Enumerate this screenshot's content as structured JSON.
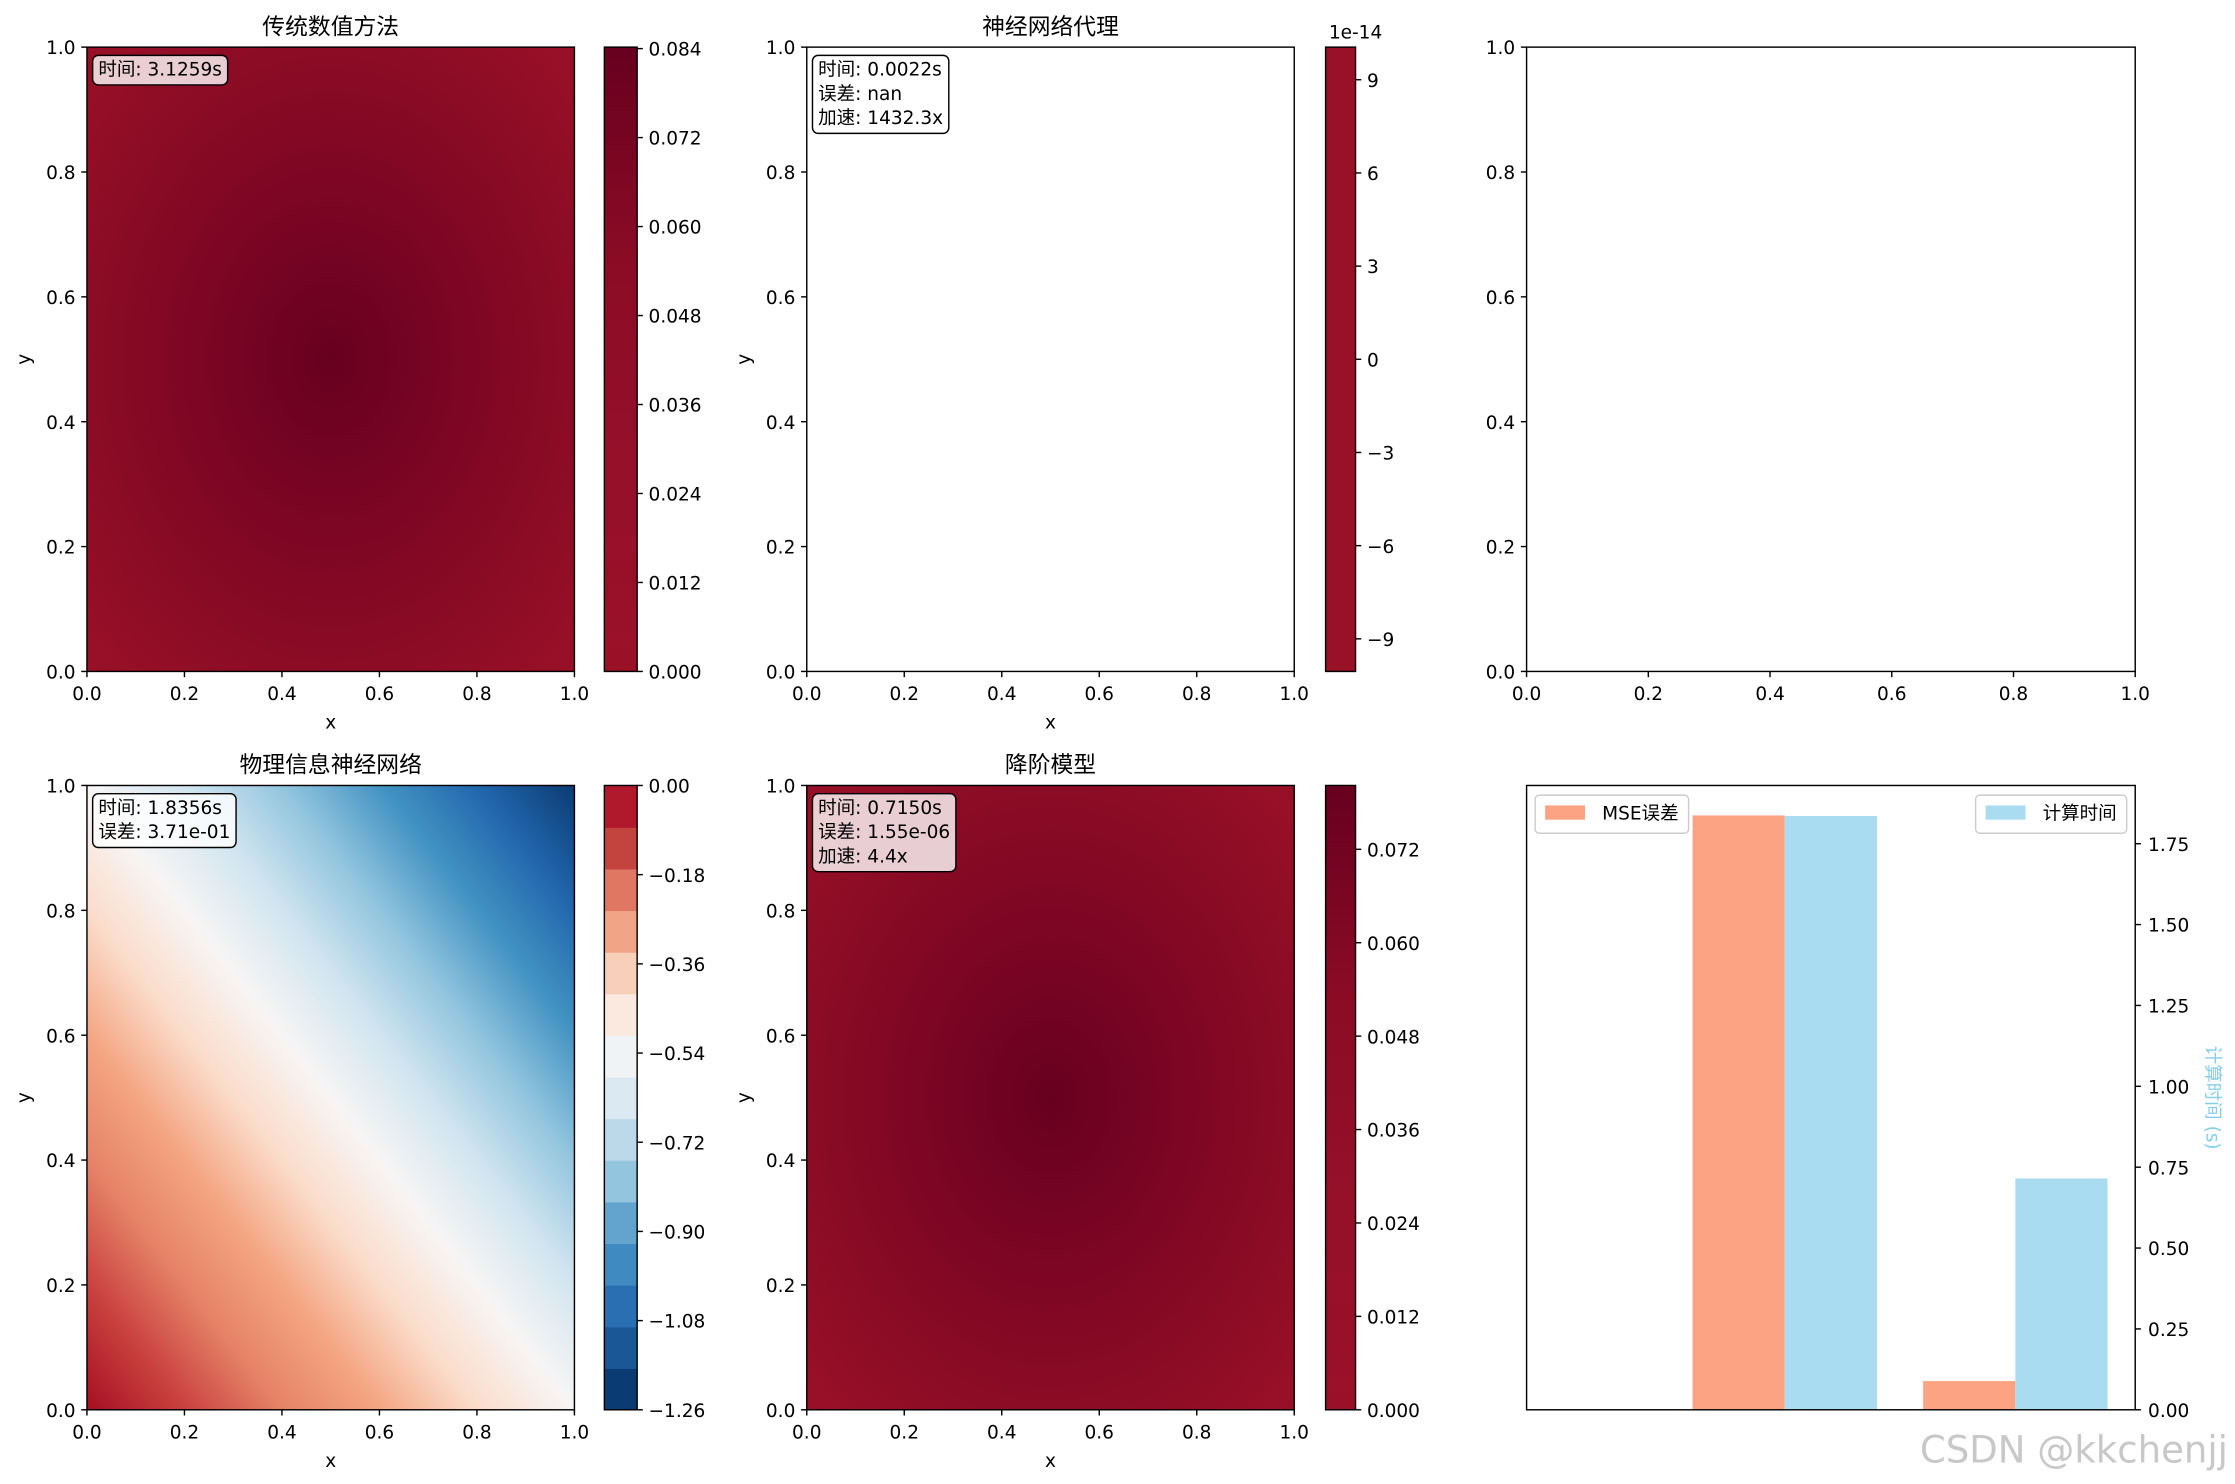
{
  "chart_data": [
    {
      "type": "contour",
      "title": "传统数值方法",
      "xlabel": "x",
      "ylabel": "y",
      "xlim": [
        0,
        1
      ],
      "ylim": [
        0,
        1
      ],
      "xticks": [
        {
          "value": 0,
          "label": "0.0"
        },
        {
          "value": 0.2,
          "label": "0.2"
        },
        {
          "value": 0.4,
          "label": "0.4"
        },
        {
          "value": 0.6,
          "label": "0.6"
        },
        {
          "value": 0.8,
          "label": "0.8"
        },
        {
          "value": 1,
          "label": "1.0"
        }
      ],
      "yticks": [
        {
          "value": 0,
          "label": "0.0"
        },
        {
          "value": 0.2,
          "label": "0.2"
        },
        {
          "value": 0.4,
          "label": "0.4"
        },
        {
          "value": 0.6,
          "label": "0.6"
        },
        {
          "value": 0.8,
          "label": "0.8"
        },
        {
          "value": 1,
          "label": "1.0"
        }
      ],
      "annotation": [
        "时间: 3.1259s"
      ],
      "field": {
        "shape": "radial",
        "colors": [
          "#67001f",
          "#7a0523",
          "#8b0b25",
          "#9a1127"
        ]
      },
      "colorbar": {
        "lim": [
          0,
          0.0842
        ],
        "ticks": [
          {
            "value": 0,
            "label": "0.000"
          },
          0.012,
          0.024,
          0.036,
          0.048,
          {
            "value": 0.06,
            "label": "0.060"
          },
          0.072,
          0.084
        ],
        "colors": [
          "#9a1127",
          "#96102a",
          "#8b0b25",
          "#67001f"
        ]
      }
    },
    {
      "type": "contour",
      "title": "神经网络代理",
      "xlabel": "x",
      "ylabel": "y",
      "xlim": [
        0,
        1
      ],
      "ylim": [
        0,
        1
      ],
      "xticks": [
        {
          "value": 0,
          "label": "0.0"
        },
        {
          "value": 0.2,
          "label": "0.2"
        },
        {
          "value": 0.4,
          "label": "0.4"
        },
        {
          "value": 0.6,
          "label": "0.6"
        },
        {
          "value": 0.8,
          "label": "0.8"
        },
        {
          "value": 1,
          "label": "1.0"
        }
      ],
      "yticks": [
        {
          "value": 0,
          "label": "0.0"
        },
        {
          "value": 0.2,
          "label": "0.2"
        },
        {
          "value": 0.4,
          "label": "0.4"
        },
        {
          "value": 0.6,
          "label": "0.6"
        },
        {
          "value": 0.8,
          "label": "0.8"
        },
        {
          "value": 1,
          "label": "1.0"
        }
      ],
      "annotation": [
        "时间: 0.0022s",
        "误差: nan",
        "加速: 1432.3x"
      ],
      "colorbar": {
        "lim": [
          -10.05,
          10.05
        ],
        "offset_label": "1e-14",
        "ticks": [
          {
            "value": -9,
            "label": "−9"
          },
          {
            "value": -6,
            "label": "−6"
          },
          {
            "value": -3,
            "label": "−3"
          },
          0,
          3,
          6,
          9
        ],
        "colors": [
          "#981127"
        ]
      }
    },
    {
      "type": "axes",
      "xlim": [
        0,
        1
      ],
      "ylim": [
        0,
        1
      ],
      "xticks": [
        {
          "value": 0,
          "label": "0.0"
        },
        {
          "value": 0.2,
          "label": "0.2"
        },
        {
          "value": 0.4,
          "label": "0.4"
        },
        {
          "value": 0.6,
          "label": "0.6"
        },
        {
          "value": 0.8,
          "label": "0.8"
        },
        {
          "value": 1,
          "label": "1.0"
        }
      ],
      "yticks": [
        {
          "value": 0,
          "label": "0.0"
        },
        {
          "value": 0.2,
          "label": "0.2"
        },
        {
          "value": 0.4,
          "label": "0.4"
        },
        {
          "value": 0.6,
          "label": "0.6"
        },
        {
          "value": 0.8,
          "label": "0.8"
        },
        {
          "value": 1,
          "label": "1.0"
        }
      ]
    },
    {
      "type": "contour",
      "title": "物理信息神经网络",
      "xlabel": "x",
      "ylabel": "y",
      "xlim": [
        0,
        1
      ],
      "ylim": [
        0,
        1
      ],
      "xticks": [
        {
          "value": 0,
          "label": "0.0"
        },
        {
          "value": 0.2,
          "label": "0.2"
        },
        {
          "value": 0.4,
          "label": "0.4"
        },
        {
          "value": 0.6,
          "label": "0.6"
        },
        {
          "value": 0.8,
          "label": "0.8"
        },
        {
          "value": 1,
          "label": "1.0"
        }
      ],
      "yticks": [
        {
          "value": 0,
          "label": "0.0"
        },
        {
          "value": 0.2,
          "label": "0.2"
        },
        {
          "value": 0.4,
          "label": "0.4"
        },
        {
          "value": 0.6,
          "label": "0.6"
        },
        {
          "value": 0.8,
          "label": "0.8"
        },
        {
          "value": 1,
          "label": "1.0"
        }
      ],
      "annotation": [
        "时间: 1.8356s",
        "误差: 3.71e-01"
      ],
      "field": {
        "shape": "diagonal",
        "colors": [
          "#a50f22",
          "#c9403e",
          "#e58267",
          "#f4a582",
          "#fbdcca",
          "#f7f5f4",
          "#d1e5f0",
          "#92c5de",
          "#4393c3",
          "#2166ac",
          "#0b3b73"
        ]
      },
      "colorbar": {
        "lim": [
          -1.26,
          0
        ],
        "discrete": true,
        "ticks": [
          {
            "value": 0,
            "label": "0.00"
          },
          {
            "value": -0.18,
            "label": "−0.18"
          },
          {
            "value": -0.36,
            "label": "−0.36"
          },
          {
            "value": -0.54,
            "label": "−0.54"
          },
          {
            "value": -0.72,
            "label": "−0.72"
          },
          {
            "value": -0.9,
            "label": "−0.90"
          },
          {
            "value": -1.08,
            "label": "−1.08"
          },
          {
            "value": -1.26,
            "label": "−1.26"
          }
        ],
        "colors": [
          "#0b3b73",
          "#1a5797",
          "#2a6fb2",
          "#3f8ac0",
          "#62a4ce",
          "#93c5de",
          "#bcd9ea",
          "#dbeaf2",
          "#f0f3f5",
          "#fbe9e0",
          "#f8cfb9",
          "#f1a486",
          "#df7763",
          "#c3433f",
          "#b2182b"
        ]
      }
    },
    {
      "type": "contour",
      "title": "降阶模型",
      "xlabel": "x",
      "ylabel": "y",
      "xlim": [
        0,
        1
      ],
      "ylim": [
        0,
        1
      ],
      "xticks": [
        {
          "value": 0,
          "label": "0.0"
        },
        {
          "value": 0.2,
          "label": "0.2"
        },
        {
          "value": 0.4,
          "label": "0.4"
        },
        {
          "value": 0.6,
          "label": "0.6"
        },
        {
          "value": 0.8,
          "label": "0.8"
        },
        {
          "value": 1,
          "label": "1.0"
        }
      ],
      "yticks": [
        {
          "value": 0,
          "label": "0.0"
        },
        {
          "value": 0.2,
          "label": "0.2"
        },
        {
          "value": 0.4,
          "label": "0.4"
        },
        {
          "value": 0.6,
          "label": "0.6"
        },
        {
          "value": 0.8,
          "label": "0.8"
        },
        {
          "value": 1,
          "label": "1.0"
        }
      ],
      "annotation": [
        "时间: 0.7150s",
        "误差: 1.55e-06",
        "加速: 4.4x"
      ],
      "field": {
        "shape": "radial",
        "colors": [
          "#67001f",
          "#7a0523",
          "#8b0b25",
          "#9a1127"
        ]
      },
      "colorbar": {
        "lim": [
          0,
          0.0802
        ],
        "ticks": [
          {
            "value": 0,
            "label": "0.000"
          },
          0.012,
          0.024,
          0.036,
          0.048,
          {
            "value": 0.06,
            "label": "0.060"
          },
          0.072
        ],
        "colors": [
          "#9a1127",
          "#96102a",
          "#8b0b25",
          "#67001f"
        ]
      }
    },
    {
      "type": "bar",
      "x": [
        0,
        1,
        2
      ],
      "xlim": [
        -0.12,
        2.52
      ],
      "ylim": [
        0,
        1
      ],
      "y2lim": [
        0,
        1.93
      ],
      "y2label": "计算时间 (s)",
      "y2label_color": "#87ceeb",
      "y2ticks": [
        {
          "value": 0,
          "label": "0.00"
        },
        {
          "value": 0.25,
          "label": "0.25"
        },
        {
          "value": 0.5,
          "label": "0.50"
        },
        {
          "value": 0.75,
          "label": "0.75"
        },
        {
          "value": 1,
          "label": "1.00"
        },
        {
          "value": 1.25,
          "label": "1.25"
        },
        {
          "value": 1.5,
          "label": "1.50"
        },
        {
          "value": 1.75,
          "label": "1.75"
        }
      ],
      "series": [
        {
          "name": "MSE误差",
          "color": "#fca384",
          "legend": "upper left",
          "values": [
            null,
            0.952,
            0.046
          ]
        },
        {
          "name": "计算时间",
          "color": "#a9dcf0",
          "axis": "y2",
          "legend": "upper right",
          "values": [
            0.0022,
            1.8356,
            0.715
          ]
        }
      ]
    }
  ],
  "watermark": "CSDN @kkchenjj"
}
